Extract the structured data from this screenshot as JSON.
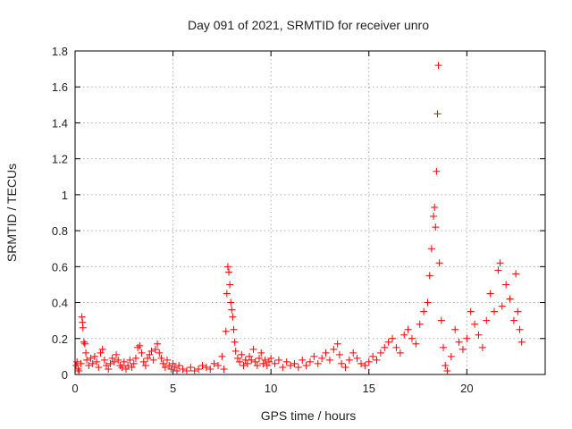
{
  "chart_data": {
    "type": "scatter",
    "title": "Day 091 of 2021, SRMTID for receiver unro",
    "xlabel": "GPS time / hours",
    "ylabel": "SRMTID / TECUs",
    "xlim": [
      0,
      24
    ],
    "ylim": [
      0,
      1.8
    ],
    "x_ticks": [
      0,
      5,
      10,
      15,
      20
    ],
    "x_tick_labels": [
      "0",
      "5",
      "10",
      "15",
      "20"
    ],
    "y_ticks": [
      0,
      0.2,
      0.4,
      0.6,
      0.8,
      1.0,
      1.2,
      1.4,
      1.6,
      1.8
    ],
    "y_tick_labels": [
      "0",
      "0.2",
      "0.4",
      "0.6",
      "0.8",
      "1",
      "1.2",
      "1.4",
      "1.6",
      "1.8"
    ],
    "grid": true,
    "marker": "+",
    "color": "#ff0000",
    "series": [
      {
        "name": "SRMTID",
        "points": [
          [
            0.05,
            0.05
          ],
          [
            0.1,
            0.07
          ],
          [
            0.15,
            0.03
          ],
          [
            0.2,
            0.02
          ],
          [
            0.3,
            0.06
          ],
          [
            0.35,
            0.32
          ],
          [
            0.38,
            0.29
          ],
          [
            0.4,
            0.26
          ],
          [
            0.45,
            0.18
          ],
          [
            0.5,
            0.17
          ],
          [
            0.55,
            0.12
          ],
          [
            0.6,
            0.08
          ],
          [
            0.7,
            0.05
          ],
          [
            0.8,
            0.09
          ],
          [
            0.9,
            0.06
          ],
          [
            1.0,
            0.1
          ],
          [
            1.1,
            0.07
          ],
          [
            1.2,
            0.04
          ],
          [
            1.3,
            0.12
          ],
          [
            1.4,
            0.14
          ],
          [
            1.5,
            0.08
          ],
          [
            1.6,
            0.05
          ],
          [
            1.7,
            0.03
          ],
          [
            1.8,
            0.06
          ],
          [
            1.9,
            0.09
          ],
          [
            2.0,
            0.07
          ],
          [
            2.1,
            0.11
          ],
          [
            2.2,
            0.08
          ],
          [
            2.3,
            0.05
          ],
          [
            2.4,
            0.04
          ],
          [
            2.5,
            0.07
          ],
          [
            2.6,
            0.03
          ],
          [
            2.7,
            0.05
          ],
          [
            2.8,
            0.08
          ],
          [
            2.9,
            0.04
          ],
          [
            3.0,
            0.06
          ],
          [
            3.1,
            0.09
          ],
          [
            3.2,
            0.15
          ],
          [
            3.3,
            0.16
          ],
          [
            3.4,
            0.12
          ],
          [
            3.5,
            0.07
          ],
          [
            3.6,
            0.05
          ],
          [
            3.7,
            0.09
          ],
          [
            3.8,
            0.11
          ],
          [
            3.9,
            0.13
          ],
          [
            4.0,
            0.08
          ],
          [
            4.1,
            0.14
          ],
          [
            4.2,
            0.17
          ],
          [
            4.3,
            0.12
          ],
          [
            4.4,
            0.09
          ],
          [
            4.5,
            0.06
          ],
          [
            4.6,
            0.04
          ],
          [
            4.7,
            0.08
          ],
          [
            4.8,
            0.05
          ],
          [
            4.9,
            0.03
          ],
          [
            5.0,
            0.06
          ],
          [
            5.1,
            0.04
          ],
          [
            5.2,
            0.02
          ],
          [
            5.3,
            0.05
          ],
          [
            5.5,
            0.03
          ],
          [
            5.7,
            0.02
          ],
          [
            5.9,
            0.04
          ],
          [
            6.1,
            0.02
          ],
          [
            6.3,
            0.03
          ],
          [
            6.5,
            0.05
          ],
          [
            6.7,
            0.04
          ],
          [
            6.9,
            0.03
          ],
          [
            7.1,
            0.06
          ],
          [
            7.3,
            0.05
          ],
          [
            7.5,
            0.1
          ],
          [
            7.6,
            0.03
          ],
          [
            7.7,
            0.24
          ],
          [
            7.75,
            0.45
          ],
          [
            7.8,
            0.6
          ],
          [
            7.85,
            0.57
          ],
          [
            7.9,
            0.5
          ],
          [
            7.95,
            0.4
          ],
          [
            8.0,
            0.36
          ],
          [
            8.05,
            0.32
          ],
          [
            8.1,
            0.25
          ],
          [
            8.15,
            0.18
          ],
          [
            8.2,
            0.13
          ],
          [
            8.3,
            0.09
          ],
          [
            8.4,
            0.07
          ],
          [
            8.5,
            0.11
          ],
          [
            8.6,
            0.05
          ],
          [
            8.7,
            0.08
          ],
          [
            8.8,
            0.06
          ],
          [
            8.9,
            0.1
          ],
          [
            9.0,
            0.08
          ],
          [
            9.1,
            0.14
          ],
          [
            9.2,
            0.07
          ],
          [
            9.3,
            0.05
          ],
          [
            9.4,
            0.09
          ],
          [
            9.5,
            0.12
          ],
          [
            9.6,
            0.06
          ],
          [
            9.7,
            0.08
          ],
          [
            9.8,
            0.05
          ],
          [
            9.9,
            0.07
          ],
          [
            10.0,
            0.09
          ],
          [
            10.2,
            0.06
          ],
          [
            10.4,
            0.08
          ],
          [
            10.6,
            0.04
          ],
          [
            10.8,
            0.07
          ],
          [
            11.0,
            0.05
          ],
          [
            11.2,
            0.06
          ],
          [
            11.4,
            0.04
          ],
          [
            11.6,
            0.08
          ],
          [
            11.8,
            0.05
          ],
          [
            12.0,
            0.07
          ],
          [
            12.2,
            0.1
          ],
          [
            12.4,
            0.06
          ],
          [
            12.6,
            0.09
          ],
          [
            12.8,
            0.12
          ],
          [
            13.0,
            0.08
          ],
          [
            13.2,
            0.14
          ],
          [
            13.4,
            0.17
          ],
          [
            13.5,
            0.11
          ],
          [
            13.6,
            0.06
          ],
          [
            13.8,
            0.04
          ],
          [
            14.0,
            0.08
          ],
          [
            14.2,
            0.12
          ],
          [
            14.4,
            0.09
          ],
          [
            14.6,
            0.06
          ],
          [
            14.8,
            0.05
          ],
          [
            15.0,
            0.07
          ],
          [
            15.2,
            0.1
          ],
          [
            15.4,
            0.08
          ],
          [
            15.6,
            0.12
          ],
          [
            15.8,
            0.15
          ],
          [
            16.0,
            0.18
          ],
          [
            16.2,
            0.2
          ],
          [
            16.4,
            0.15
          ],
          [
            16.6,
            0.12
          ],
          [
            16.8,
            0.22
          ],
          [
            17.0,
            0.25
          ],
          [
            17.2,
            0.2
          ],
          [
            17.4,
            0.17
          ],
          [
            17.6,
            0.28
          ],
          [
            17.8,
            0.35
          ],
          [
            18.0,
            0.4
          ],
          [
            18.1,
            0.55
          ],
          [
            18.2,
            0.7
          ],
          [
            18.3,
            0.88
          ],
          [
            18.35,
            0.93
          ],
          [
            18.4,
            0.82
          ],
          [
            18.45,
            1.13
          ],
          [
            18.5,
            1.45
          ],
          [
            18.55,
            1.72
          ],
          [
            18.6,
            0.62
          ],
          [
            18.7,
            0.3
          ],
          [
            18.8,
            0.15
          ],
          [
            18.9,
            0.05
          ],
          [
            19.0,
            0.02
          ],
          [
            19.2,
            0.1
          ],
          [
            19.4,
            0.25
          ],
          [
            19.6,
            0.18
          ],
          [
            19.8,
            0.14
          ],
          [
            20.0,
            0.2
          ],
          [
            20.2,
            0.35
          ],
          [
            20.4,
            0.28
          ],
          [
            20.6,
            0.22
          ],
          [
            20.8,
            0.15
          ],
          [
            21.0,
            0.3
          ],
          [
            21.2,
            0.45
          ],
          [
            21.4,
            0.35
          ],
          [
            21.6,
            0.58
          ],
          [
            21.7,
            0.62
          ],
          [
            21.8,
            0.38
          ],
          [
            22.0,
            0.5
          ],
          [
            22.2,
            0.42
          ],
          [
            22.4,
            0.3
          ],
          [
            22.5,
            0.56
          ],
          [
            22.6,
            0.35
          ],
          [
            22.7,
            0.25
          ],
          [
            22.8,
            0.18
          ]
        ]
      }
    ]
  }
}
